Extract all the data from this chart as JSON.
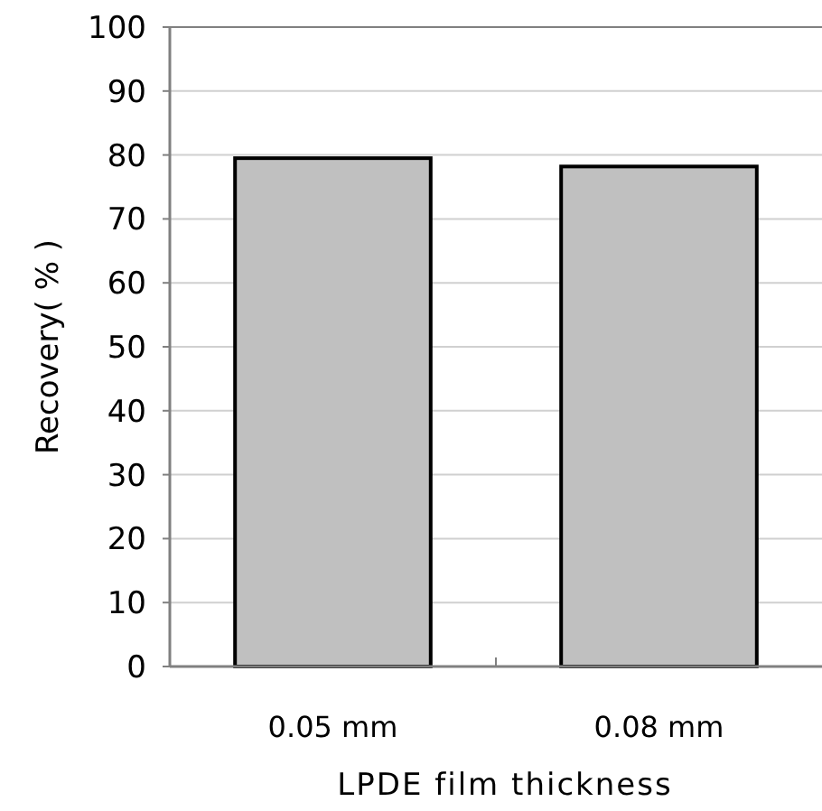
{
  "chart_data": {
    "type": "bar",
    "xlabel": "LPDE film thickness",
    "ylabel": "Recovery( % )",
    "categories": [
      "0.05 mm",
      "0.08 mm"
    ],
    "values": [
      79.5,
      78.2
    ],
    "color": "#c0c0c0",
    "ylim": [
      0,
      100
    ],
    "yticks": [
      0,
      10,
      20,
      30,
      40,
      50,
      60,
      70,
      80,
      90,
      100
    ],
    "grid": "y"
  }
}
